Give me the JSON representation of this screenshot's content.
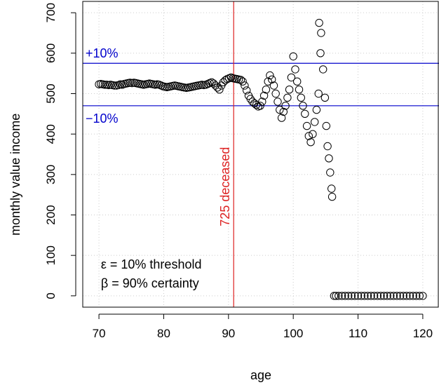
{
  "chart_data": {
    "type": "scatter",
    "xlabel": "age",
    "ylabel": "monthly value income",
    "xlim": [
      67.5,
      122.5
    ],
    "ylim": [
      -28,
      728
    ],
    "x_ticks": [
      70,
      80,
      90,
      100,
      110,
      120
    ],
    "y_ticks": [
      0,
      100,
      200,
      300,
      400,
      500,
      600,
      700
    ],
    "grid": true,
    "grid_style": "dotted",
    "marker": "open-circle",
    "colors": {
      "points": "#000000",
      "bands": "#0000cc",
      "vline": "#dd2222",
      "grid": "#cccccc"
    },
    "hlines": [
      {
        "y": 575,
        "label": "+10%"
      },
      {
        "y": 470,
        "label": "−10%"
      }
    ],
    "vline": {
      "x": 90.8,
      "label": "725 deceased"
    },
    "annotations": [
      "ε = 10% threshold",
      "β = 90% certainty"
    ],
    "series": [
      {
        "points": [
          [
            70.0,
            523
          ],
          [
            70.3,
            524
          ],
          [
            70.6,
            523
          ],
          [
            70.9,
            522
          ],
          [
            71.2,
            522
          ],
          [
            71.5,
            521
          ],
          [
            71.8,
            522
          ],
          [
            72.1,
            521
          ],
          [
            72.4,
            520
          ],
          [
            72.7,
            520
          ],
          [
            73.0,
            521
          ],
          [
            73.3,
            523
          ],
          [
            73.6,
            522
          ],
          [
            73.9,
            524
          ],
          [
            74.2,
            525
          ],
          [
            74.5,
            526
          ],
          [
            74.8,
            527
          ],
          [
            75.1,
            526
          ],
          [
            75.4,
            527
          ],
          [
            75.7,
            526
          ],
          [
            76.0,
            525
          ],
          [
            76.3,
            524
          ],
          [
            76.6,
            523
          ],
          [
            76.9,
            522
          ],
          [
            77.2,
            523
          ],
          [
            77.5,
            524
          ],
          [
            77.8,
            525
          ],
          [
            78.1,
            524
          ],
          [
            78.4,
            523
          ],
          [
            78.7,
            522
          ],
          [
            79.0,
            523
          ],
          [
            79.3,
            522
          ],
          [
            79.6,
            520
          ],
          [
            79.9,
            518
          ],
          [
            80.2,
            517
          ],
          [
            80.5,
            516
          ],
          [
            80.8,
            517
          ],
          [
            81.1,
            518
          ],
          [
            81.4,
            519
          ],
          [
            81.7,
            520
          ],
          [
            82.0,
            519
          ],
          [
            82.3,
            518
          ],
          [
            82.6,
            517
          ],
          [
            82.9,
            516
          ],
          [
            83.2,
            515
          ],
          [
            83.5,
            514
          ],
          [
            83.8,
            515
          ],
          [
            84.1,
            516
          ],
          [
            84.4,
            517
          ],
          [
            84.7,
            518
          ],
          [
            85.0,
            519
          ],
          [
            85.3,
            520
          ],
          [
            85.6,
            521
          ],
          [
            85.9,
            522
          ],
          [
            86.2,
            521
          ],
          [
            86.5,
            522
          ],
          [
            86.8,
            524
          ],
          [
            87.1,
            526
          ],
          [
            87.4,
            528
          ],
          [
            87.7,
            525
          ],
          [
            88.0,
            520
          ],
          [
            88.3,
            515
          ],
          [
            88.6,
            510
          ],
          [
            88.9,
            520
          ],
          [
            89.2,
            528
          ],
          [
            89.5,
            533
          ],
          [
            89.8,
            536
          ],
          [
            90.1,
            538
          ],
          [
            90.4,
            540
          ],
          [
            90.7,
            538
          ],
          [
            91.0,
            537
          ],
          [
            91.3,
            536
          ],
          [
            91.6,
            535
          ],
          [
            91.9,
            534
          ],
          [
            92.2,
            530
          ],
          [
            92.5,
            520
          ],
          [
            92.8,
            508
          ],
          [
            93.1,
            495
          ],
          [
            93.4,
            487
          ],
          [
            93.7,
            480
          ],
          [
            94.0,
            476
          ],
          [
            94.3,
            472
          ],
          [
            94.6,
            468
          ],
          [
            94.9,
            470
          ],
          [
            95.2,
            480
          ],
          [
            95.5,
            495
          ],
          [
            95.8,
            510
          ],
          [
            96.1,
            530
          ],
          [
            96.4,
            545
          ],
          [
            96.7,
            535
          ],
          [
            97.0,
            520
          ],
          [
            97.3,
            500
          ],
          [
            97.6,
            480
          ],
          [
            97.9,
            460
          ],
          [
            98.2,
            440
          ],
          [
            98.5,
            455
          ],
          [
            98.8,
            470
          ],
          [
            99.1,
            490
          ],
          [
            99.4,
            510
          ],
          [
            99.7,
            540
          ],
          [
            100.0,
            592
          ],
          [
            100.3,
            560
          ],
          [
            100.6,
            530
          ],
          [
            100.9,
            510
          ],
          [
            101.2,
            490
          ],
          [
            101.5,
            470
          ],
          [
            101.8,
            450
          ],
          [
            102.1,
            420
          ],
          [
            102.4,
            395
          ],
          [
            102.7,
            380
          ],
          [
            103.0,
            400
          ],
          [
            103.3,
            430
          ],
          [
            103.6,
            460
          ],
          [
            103.9,
            500
          ],
          [
            104.2,
            600
          ],
          [
            104.0,
            675
          ],
          [
            104.3,
            650
          ],
          [
            104.6,
            560
          ],
          [
            104.9,
            490
          ],
          [
            105.1,
            420
          ],
          [
            105.3,
            370
          ],
          [
            105.5,
            340
          ],
          [
            105.7,
            305
          ],
          [
            105.9,
            265
          ],
          [
            106.0,
            245
          ],
          [
            106.3,
            0
          ],
          [
            106.6,
            0
          ],
          [
            107.0,
            0
          ],
          [
            107.5,
            0
          ],
          [
            108.0,
            0
          ],
          [
            108.5,
            0
          ],
          [
            109.0,
            0
          ],
          [
            109.5,
            0
          ],
          [
            110.0,
            0
          ],
          [
            110.5,
            0
          ],
          [
            111.0,
            0
          ],
          [
            111.5,
            0
          ],
          [
            112.0,
            0
          ],
          [
            112.5,
            0
          ],
          [
            113.0,
            0
          ],
          [
            113.5,
            0
          ],
          [
            114.0,
            0
          ],
          [
            114.5,
            0
          ],
          [
            115.0,
            0
          ],
          [
            115.5,
            0
          ],
          [
            116.0,
            0
          ],
          [
            116.5,
            0
          ],
          [
            117.0,
            0
          ],
          [
            117.5,
            0
          ],
          [
            118.0,
            0
          ],
          [
            118.5,
            0
          ],
          [
            119.0,
            0
          ],
          [
            119.5,
            0
          ],
          [
            120.0,
            0
          ]
        ]
      }
    ]
  }
}
